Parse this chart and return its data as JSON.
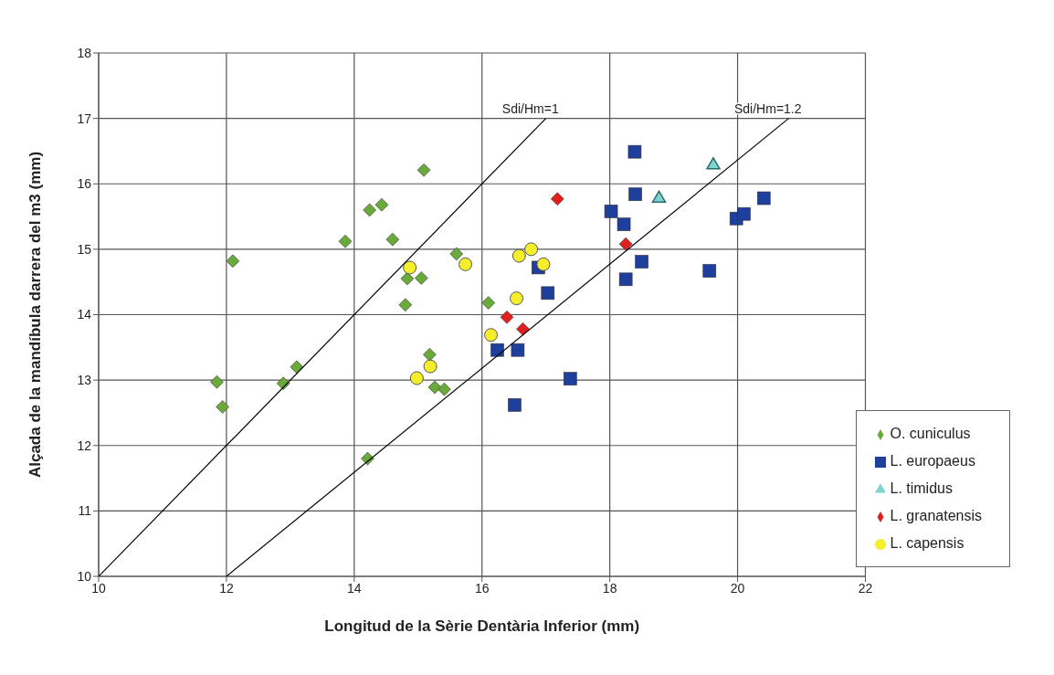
{
  "chart_data": {
    "type": "scatter",
    "xlabel": "Longitud de la Sèrie Dentària Inferior (mm)",
    "ylabel": "Alçada de la mandíbula darrera del m3 (mm)",
    "xlim": [
      10,
      22
    ],
    "ylim": [
      10,
      18
    ],
    "xticks": [
      10,
      12,
      14,
      16,
      18,
      20,
      22
    ],
    "yticks": [
      10,
      11,
      12,
      13,
      14,
      15,
      16,
      17,
      18
    ],
    "grid": true,
    "legend": "bottom right",
    "series": [
      {
        "name": "O. cuniculus",
        "color": "#6aaa3a",
        "marker": "diamond",
        "x": [
          15.09,
          14.24,
          14.43,
          14.6,
          13.86,
          12.1,
          15.6,
          14.83,
          15.05,
          14.8,
          15.18,
          13.1,
          11.85,
          12.89,
          15.26,
          15.41,
          11.94,
          14.21,
          16.1
        ],
        "values": [
          16.21,
          15.6,
          15.68,
          15.15,
          15.12,
          14.82,
          14.93,
          14.55,
          14.56,
          14.15,
          13.39,
          13.2,
          12.97,
          12.95,
          12.89,
          12.86,
          12.59,
          11.8,
          14.18
        ]
      },
      {
        "name": "L. europaeus",
        "color": "#1f3f9c",
        "marker": "square",
        "x": [
          18.39,
          18.4,
          18.02,
          18.22,
          18.5,
          18.25,
          19.56,
          16.88,
          17.03,
          16.24,
          16.56,
          17.38,
          16.51,
          19.98,
          20.1,
          20.41
        ],
        "values": [
          16.49,
          15.84,
          15.58,
          15.38,
          14.81,
          14.54,
          14.67,
          14.72,
          14.33,
          13.46,
          13.46,
          13.02,
          12.62,
          15.47,
          15.54,
          15.78
        ]
      },
      {
        "name": "L. timidus",
        "color": "#7fd3d0",
        "marker": "triangle",
        "x": [
          18.77,
          19.62
        ],
        "values": [
          15.79,
          16.3
        ]
      },
      {
        "name": "L. granatensis",
        "color": "#e0201c",
        "marker": "diamond",
        "x": [
          17.18,
          18.25,
          16.39,
          16.64
        ],
        "values": [
          15.77,
          15.08,
          13.96,
          13.78
        ]
      },
      {
        "name": "L. capensis",
        "color": "#f5ee2a",
        "marker": "circle",
        "x": [
          14.87,
          15.19,
          14.98,
          15.74,
          16.58,
          16.77,
          16.96,
          16.54,
          16.14
        ],
        "values": [
          14.72,
          13.21,
          13.03,
          14.77,
          14.9,
          15.0,
          14.77,
          14.25,
          13.69
        ]
      },
      {
        "name": "Sdi/Hm=1",
        "type": "line",
        "color": "#000000",
        "marker": "none",
        "x": [
          10,
          17
        ],
        "values": [
          10,
          17
        ]
      },
      {
        "name": "Sdi/Hm=1.2",
        "type": "line",
        "color": "#000000",
        "marker": "none",
        "x": [
          12,
          20.8
        ],
        "values": [
          10,
          17
        ]
      }
    ]
  }
}
